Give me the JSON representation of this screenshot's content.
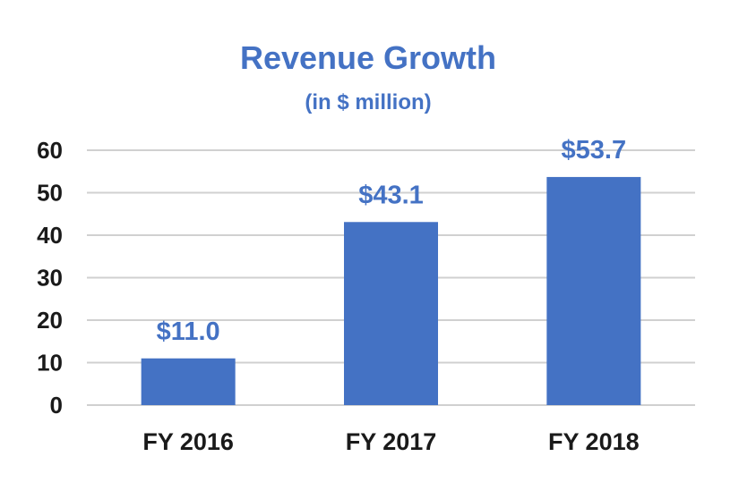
{
  "chart_data": {
    "type": "bar",
    "title": "Revenue Growth",
    "subtitle": "(in $ million)",
    "categories": [
      "FY 2016",
      "FY 2017",
      "FY 2018"
    ],
    "values": [
      11.0,
      43.1,
      53.7
    ],
    "data_labels": [
      "$11.0",
      "$43.1",
      "$53.7"
    ],
    "y_ticks": [
      0,
      10,
      20,
      30,
      40,
      50,
      60
    ],
    "ylim": [
      0,
      60
    ],
    "grid": true,
    "legend": "none",
    "bar_color": "#4472C4",
    "label_color": "#4472C4",
    "grid_color": "#D0D0D0"
  }
}
